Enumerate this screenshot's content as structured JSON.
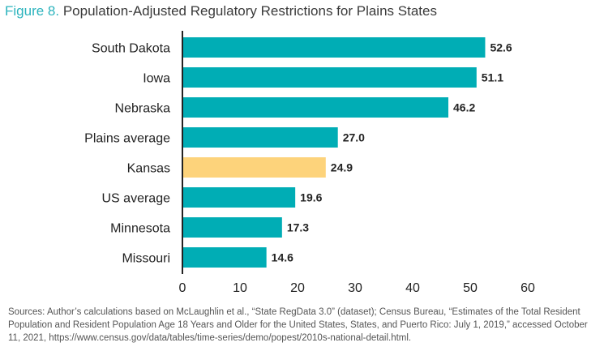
{
  "title": {
    "figure_label": "Figure 8.",
    "text": "Population-Adjusted Regulatory Restrictions for Plains States"
  },
  "source_note": "Sources: Author’s calculations based on McLaughlin et al., “State RegData 3.0” (dataset); Census Bureau, “Estimates of the Total Resident Population and Resident Population Age 18 Years and Older for the United States, States, and Puerto Rico: July 1, 2019,” accessed October 11, 2021, https://www.census.gov/data/tables/time-series/demo/popest/2010s-national-detail.html.",
  "chart_data": {
    "type": "bar",
    "orientation": "horizontal",
    "categories": [
      "South Dakota",
      "Iowa",
      "Nebraska",
      "Plains average",
      "Kansas",
      "US average",
      "Minnesota",
      "Missouri"
    ],
    "values": [
      52.6,
      51.1,
      46.2,
      27.0,
      24.9,
      19.6,
      17.3,
      14.6
    ],
    "value_labels": [
      "52.6",
      "51.1",
      "46.2",
      "27.0",
      "24.9",
      "19.6",
      "17.3",
      "14.6"
    ],
    "highlight_category": "Kansas",
    "xlim": [
      0,
      60
    ],
    "xticks": [
      0,
      10,
      20,
      30,
      40,
      50,
      60
    ],
    "grid": false,
    "colors": {
      "bar": "#00adb5",
      "highlight": "#fdd37b",
      "axis": "#222222"
    }
  }
}
